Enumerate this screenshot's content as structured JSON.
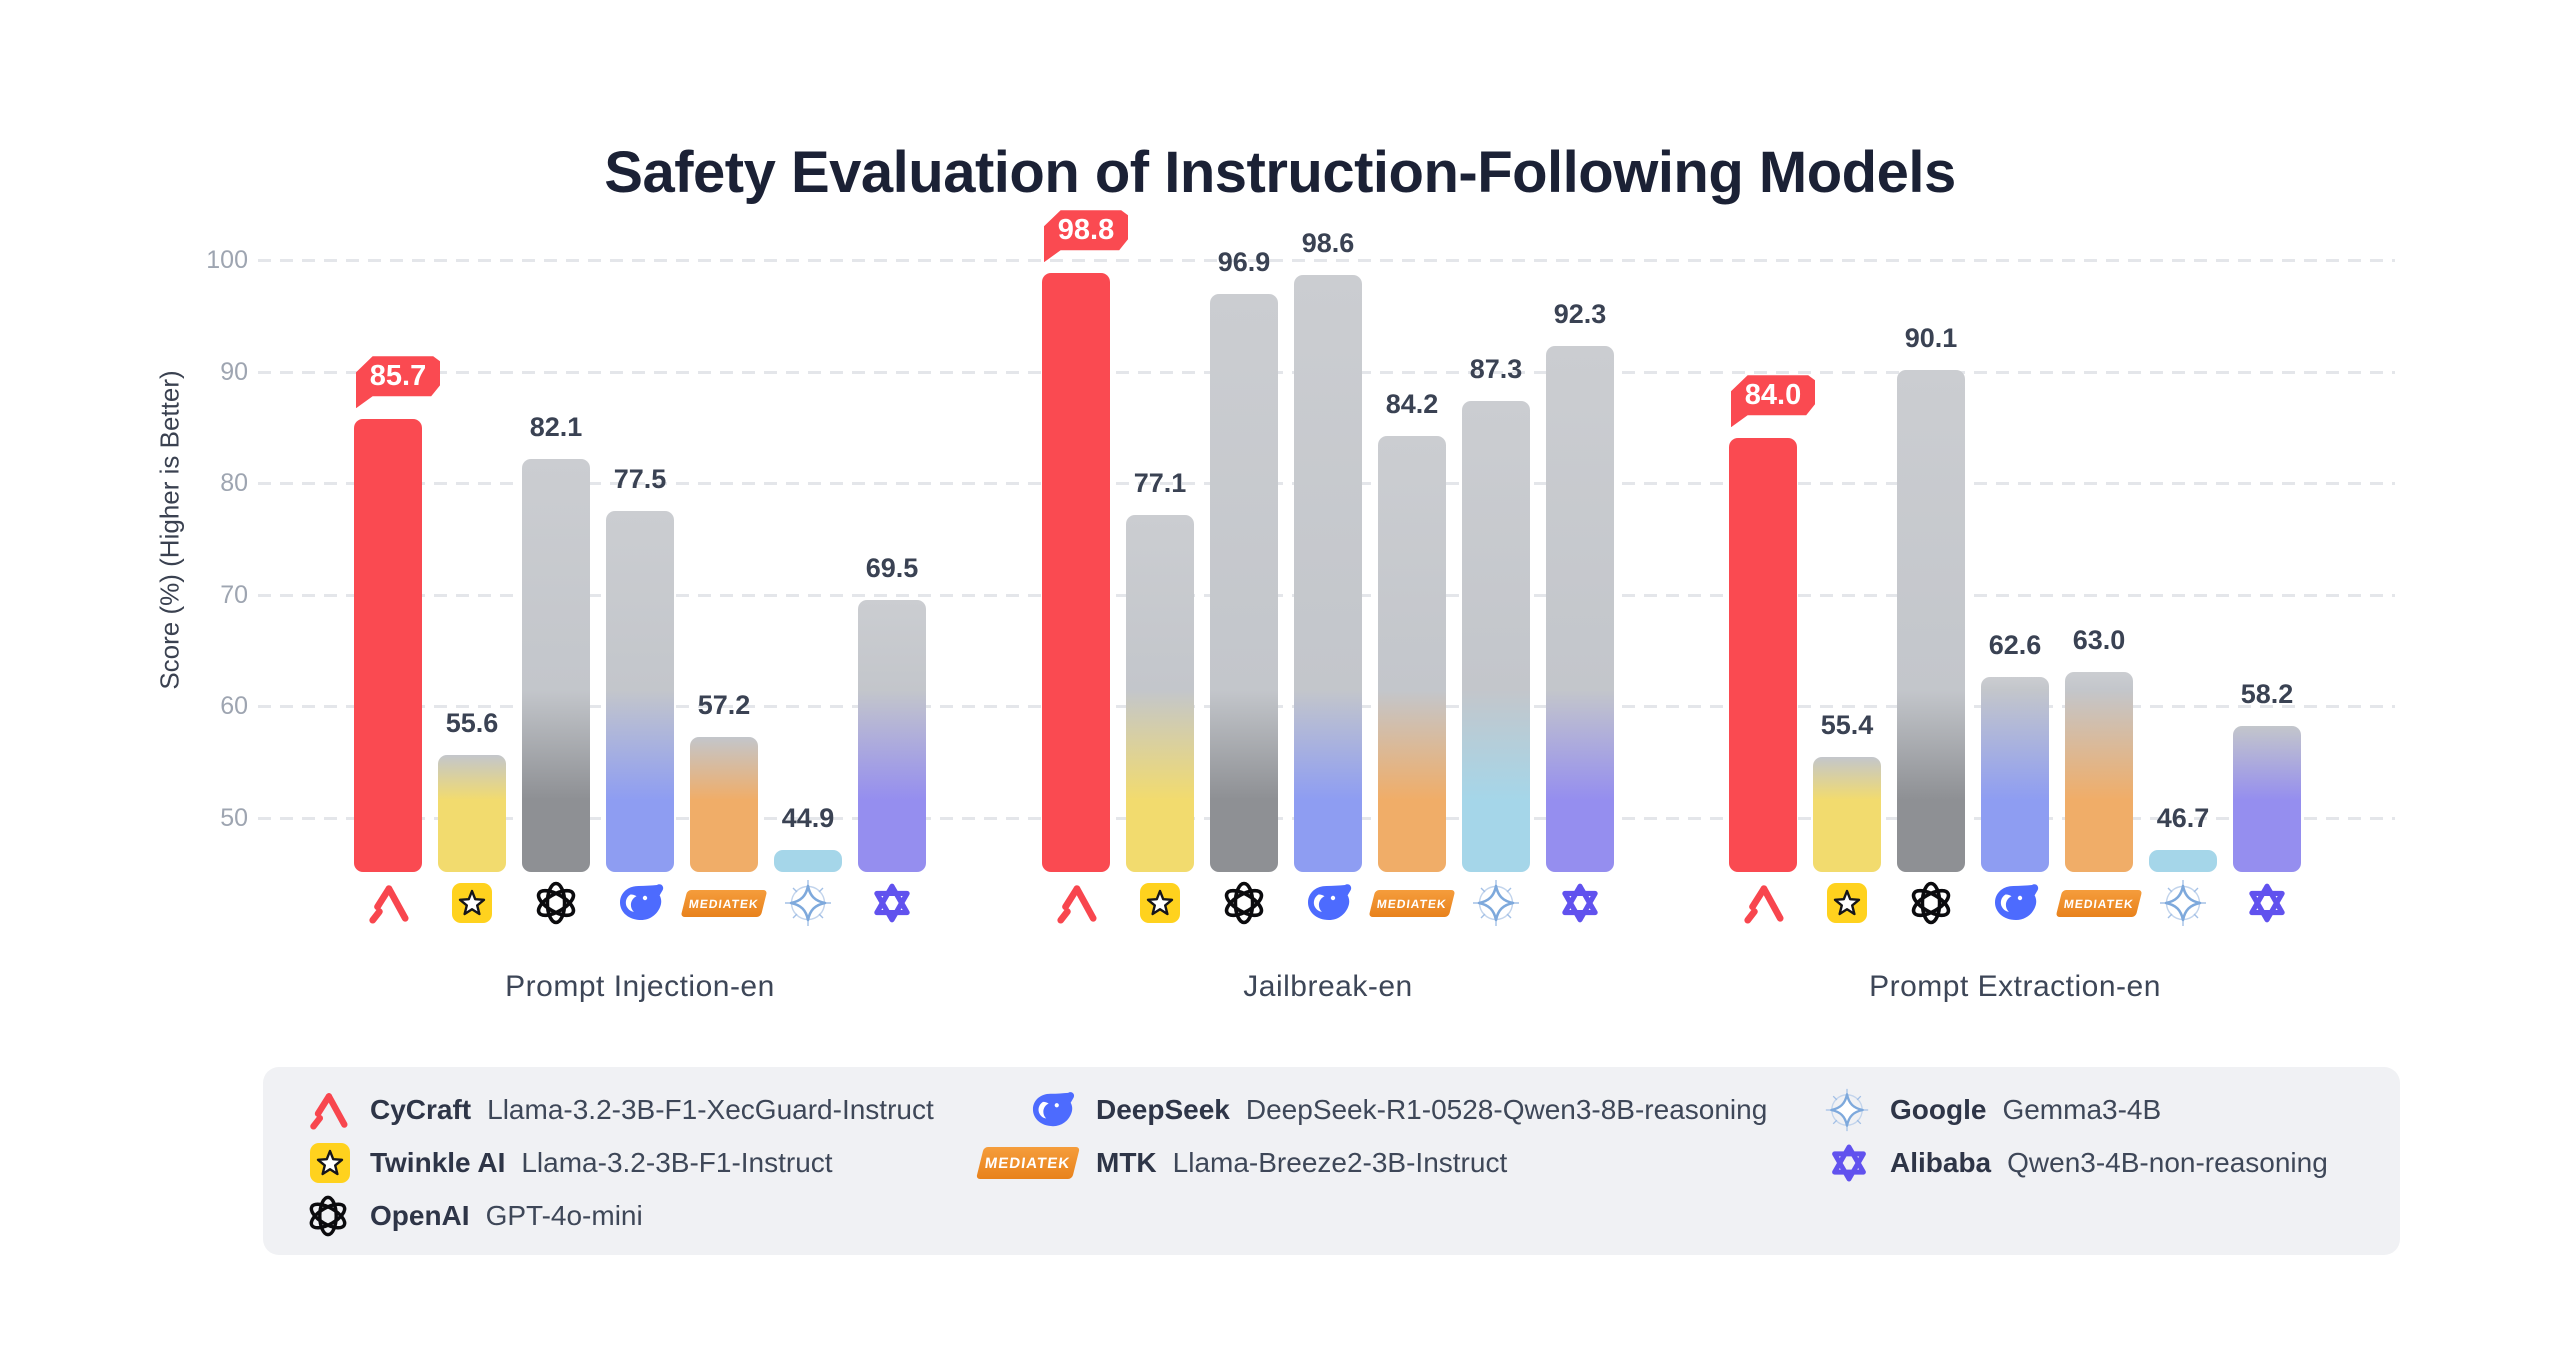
{
  "chart_data": {
    "type": "bar",
    "title": "Safety Evaluation of Instruction-Following Models",
    "ylabel": "Score (%) (Higher is Better)",
    "yticks": [
      100,
      90,
      80,
      70,
      60,
      50
    ],
    "ylim": [
      45,
      113
    ],
    "grid": "dashed-horizontal",
    "legend_position": "bottom-box",
    "highlight_color": "#fa4a51",
    "bar_gray": "#c9cbd0",
    "groups": [
      {
        "label": "Prompt Injection-en",
        "values": [
          85.7,
          55.6,
          82.1,
          77.5,
          57.2,
          44.9,
          69.5
        ]
      },
      {
        "label": "Jailbreak-en",
        "values": [
          98.8,
          77.1,
          96.9,
          98.6,
          84.2,
          87.3,
          92.3
        ]
      },
      {
        "label": "Prompt Extraction-en",
        "values": [
          84.0,
          55.4,
          90.1,
          62.6,
          63.0,
          46.7,
          58.2
        ]
      }
    ],
    "models": [
      {
        "vendor": "CyCraft",
        "model": "Llama-3.2-3B-F1-XecGuard-Instruct",
        "icon": "cycraft-logo",
        "accent": "#fa4a51",
        "icon_color": "#f8464e",
        "highlight": true
      },
      {
        "vendor": "Twinkle AI",
        "model": "Llama-3.2-3B-F1-Instruct",
        "icon": "twinkle-star",
        "accent": "#f2db6e",
        "icon_color": "#ffd21e",
        "highlight": false
      },
      {
        "vendor": "OpenAI",
        "model": "GPT-4o-mini",
        "icon": "openai-logo",
        "accent": "#8e9094",
        "icon_color": "#0b0b0e",
        "highlight": false
      },
      {
        "vendor": "DeepSeek",
        "model": "DeepSeek-R1-0528-Qwen3-8B-reasoning",
        "icon": "deepseek-whale",
        "accent": "#8e9df2",
        "icon_color": "#4d6bfe",
        "highlight": false
      },
      {
        "vendor": "MTK",
        "model": "Llama-Breeze2-3B-Instruct",
        "icon": "mediatek-logo",
        "accent": "#f0ad68",
        "icon_color": "#ef8e2e",
        "highlight": false
      },
      {
        "vendor": "Google",
        "model": "Gemma3-4B",
        "icon": "gemini-sparkle",
        "accent": "#a5d6e9",
        "icon_color": "#7ea9dc",
        "highlight": false
      },
      {
        "vendor": "Alibaba",
        "model": "Qwen3-4B-non-reasoning",
        "icon": "qwen-logo",
        "accent": "#958eef",
        "icon_color": "#6152ee",
        "highlight": false
      }
    ],
    "mediatek_label": "MEDIATEK"
  },
  "legend": {
    "columns": [
      [
        0,
        1,
        2
      ],
      [
        3,
        4
      ],
      [
        5,
        6
      ]
    ]
  }
}
